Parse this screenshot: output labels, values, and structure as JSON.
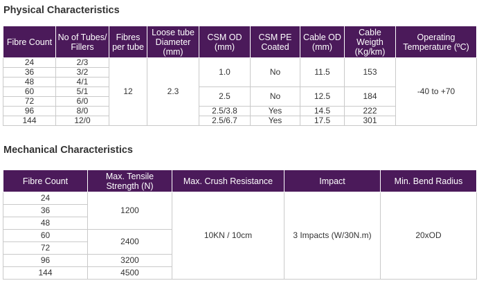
{
  "physical": {
    "title": "Physical Characteristics",
    "headers": {
      "fibre_count": "Fibre Count",
      "tubes_fillers": "No of Tubes/ Fillers",
      "fibres_per_tube": "Fibres per tube",
      "loose_tube": "Loose tube Diameter (mm)",
      "csm_od": "CSM OD (mm)",
      "csm_pe": "CSM PE Coated",
      "cable_od": "Cable OD (mm)",
      "cable_weight": "Cable Weigth (Kg/km)",
      "temp": "Operating Temperature (ºC)"
    },
    "fibre_counts": [
      "24",
      "36",
      "48",
      "60",
      "72",
      "96",
      "144"
    ],
    "tubes_fillers": [
      "2/3",
      "3/2",
      "4/1",
      "5/1",
      "6/0",
      "8/0",
      "12/0"
    ],
    "fibres_per_tube": "12",
    "loose_tube_diameter": "2.3",
    "groups": [
      {
        "csm_od": "1.0",
        "csm_pe": "No",
        "cable_od": "11.5",
        "cable_weight": "153"
      },
      {
        "csm_od": "2.5",
        "csm_pe": "No",
        "cable_od": "12.5",
        "cable_weight": "184"
      },
      {
        "csm_od": "2.5/3.8",
        "csm_pe": "Yes",
        "cable_od": "14.5",
        "cable_weight": "222"
      },
      {
        "csm_od": "2.5/6.7",
        "csm_pe": "Yes",
        "cable_od": "17.5",
        "cable_weight": "301"
      }
    ],
    "temperature": "-40 to +70"
  },
  "mechanical": {
    "title": "Mechanical Characteristics",
    "headers": {
      "fibre_count": "Fibre Count",
      "tensile": "Max. Tensile Strength (N)",
      "crush": "Max. Crush Resistance",
      "impact": "Impact",
      "bend": "Min. Bend Radius"
    },
    "fibre_counts": [
      "24",
      "36",
      "48",
      "60",
      "72",
      "96",
      "144"
    ],
    "tensile": [
      "1200",
      "2400",
      "3200",
      "4500"
    ],
    "crush": "10KN / 10cm",
    "impact": "3 Impacts (W/30N.m)",
    "bend": "20xOD"
  }
}
